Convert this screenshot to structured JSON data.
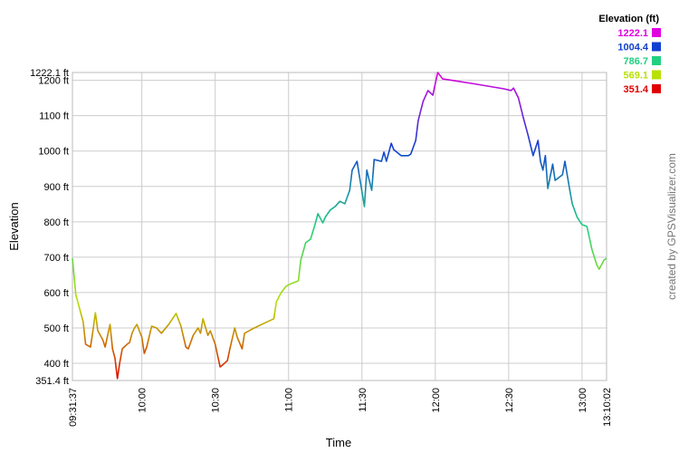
{
  "chart_data": {
    "type": "line",
    "xlabel": "Time",
    "ylabel": "Elevation",
    "credit": "created by GPSVisualizer.com",
    "legend": {
      "title": "Elevation (ft)",
      "stops": [
        {
          "value": 1222.1,
          "color": "#e000e0"
        },
        {
          "value": 1004.4,
          "color": "#1040d0"
        },
        {
          "value": 786.7,
          "color": "#20d080"
        },
        {
          "value": 569.1,
          "color": "#b8e000"
        },
        {
          "value": 351.4,
          "color": "#e00000"
        }
      ]
    },
    "xlim": [
      "09:31:37",
      "13:10:02"
    ],
    "xticks": [
      "09:31:37",
      "10:00",
      "10:30",
      "11:00",
      "11:30",
      "12:00",
      "12:30",
      "13:00",
      "13:10:02"
    ],
    "ylim": [
      351.4,
      1222.1
    ],
    "yticks": [
      {
        "value": 351.4,
        "label": "351.4 ft"
      },
      {
        "value": 400,
        "label": "400 ft"
      },
      {
        "value": 500,
        "label": "500 ft"
      },
      {
        "value": 600,
        "label": "600 ft"
      },
      {
        "value": 700,
        "label": "700 ft"
      },
      {
        "value": 800,
        "label": "800 ft"
      },
      {
        "value": 900,
        "label": "900 ft"
      },
      {
        "value": 1000,
        "label": "1000 ft"
      },
      {
        "value": 1100,
        "label": "1100 ft"
      },
      {
        "value": 1200,
        "label": "1200 ft"
      },
      {
        "value": 1222.1,
        "label": "1222.1 ft"
      }
    ],
    "grid": true,
    "x": [
      "09:31:37",
      "09:33",
      "09:35",
      "09:36",
      "09:37",
      "09:39",
      "09:40",
      "09:41",
      "09:42",
      "09:44",
      "09:45",
      "09:46",
      "09:47",
      "09:48",
      "09:49",
      "09:50",
      "09:51",
      "09:52",
      "09:54",
      "09:55",
      "09:56",
      "09:57",
      "09:58",
      "09:59",
      "10:00",
      "10:01",
      "10:02",
      "10:04",
      "10:06",
      "10:08",
      "10:11",
      "10:14",
      "10:16",
      "10:18",
      "10:19",
      "10:21",
      "10:23",
      "10:24",
      "10:25",
      "10:27",
      "10:28",
      "10:30",
      "10:32",
      "10:33",
      "10:35",
      "10:36",
      "10:38",
      "10:39",
      "10:41",
      "10:42",
      "10:46",
      "10:49",
      "10:54",
      "10:55",
      "10:57",
      "10:59",
      "11:01",
      "11:04",
      "11:05",
      "11:07",
      "11:09",
      "11:11",
      "11:12",
      "11:14",
      "11:15",
      "11:17",
      "11:19",
      "11:21",
      "11:23",
      "11:25",
      "11:26",
      "11:28",
      "11:29",
      "11:31",
      "11:32",
      "11:34",
      "11:35",
      "11:38",
      "11:39",
      "11:40",
      "11:42",
      "11:43",
      "11:46",
      "11:49",
      "11:50",
      "11:52",
      "11:53",
      "11:55",
      "11:57",
      "11:59",
      "12:00",
      "12:01",
      "12:03",
      "12:15",
      "12:28",
      "12:31",
      "12:32",
      "12:34",
      "12:36",
      "12:38",
      "12:40",
      "12:42",
      "12:43",
      "12:44",
      "12:45",
      "12:46",
      "12:48",
      "12:49",
      "12:52",
      "12:53",
      "12:55",
      "12:56",
      "12:58",
      "13:00",
      "13:02",
      "13:04",
      "13:06",
      "13:07",
      "13:09",
      "13:10:02"
    ],
    "values": [
      697,
      594,
      543,
      518,
      454,
      446,
      492,
      543,
      492,
      467,
      446,
      479,
      510,
      441,
      415,
      357,
      403,
      441,
      454,
      459,
      485,
      500,
      510,
      492,
      474,
      428,
      446,
      505,
      500,
      485,
      510,
      541,
      505,
      446,
      441,
      479,
      500,
      485,
      526,
      479,
      492,
      454,
      390,
      395,
      408,
      441,
      500,
      474,
      441,
      485,
      500,
      510,
      526,
      574,
      600,
      618,
      625,
      633,
      692,
      741,
      751,
      797,
      823,
      797,
      813,
      833,
      843,
      858,
      851,
      889,
      946,
      971,
      928,
      843,
      946,
      889,
      976,
      971,
      997,
      971,
      1022,
      1004,
      987,
      987,
      992,
      1030,
      1086,
      1140,
      1171,
      1158,
      1191,
      1222,
      1204,
      1191,
      1176,
      1171,
      1178,
      1150,
      1094,
      1043,
      987,
      1030,
      971,
      946,
      987,
      894,
      963,
      917,
      933,
      971,
      889,
      851,
      813,
      792,
      787,
      723,
      679,
      666,
      692,
      697
    ]
  }
}
